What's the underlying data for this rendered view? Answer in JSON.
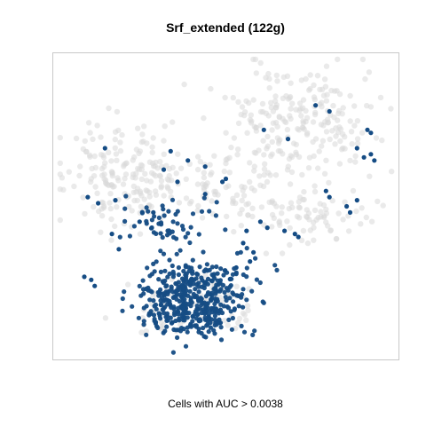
{
  "chart_data": {
    "type": "scatter",
    "title": "Srf_extended (122g)",
    "xlabel": "Cells with AUC > 0.0038",
    "ylabel": "",
    "grid": false,
    "legend": "none",
    "xlim": [
      0,
      100
    ],
    "ylim": [
      0,
      100
    ],
    "colors": {
      "background_cells": "#d8d8d8",
      "highlighted_cells": "#154c84",
      "frame": "#c8c8c8"
    },
    "background_regions": [
      {
        "name": "upper-left cluster",
        "cx": 22,
        "cy": 60,
        "rx": 18,
        "ry": 16,
        "n": 190
      },
      {
        "name": "upper-right cluster",
        "cx": 70,
        "cy": 77,
        "rx": 24,
        "ry": 19,
        "n": 230
      },
      {
        "name": "middle band",
        "cx": 48,
        "cy": 55,
        "rx": 16,
        "ry": 10,
        "n": 70
      },
      {
        "name": "right arm",
        "cx": 76,
        "cy": 47,
        "rx": 17,
        "ry": 9,
        "n": 80
      },
      {
        "name": "lower cluster",
        "cx": 40,
        "cy": 18,
        "rx": 18,
        "ry": 10,
        "n": 90
      }
    ],
    "highlighted_regions": [
      {
        "name": "dense lower cluster",
        "cx": 40,
        "cy": 17,
        "rx": 15,
        "ry": 10,
        "n": 340
      },
      {
        "name": "lower cluster halo",
        "cx": 43,
        "cy": 27,
        "rx": 17,
        "ry": 9,
        "n": 110
      },
      {
        "name": "connecting band",
        "cx": 34,
        "cy": 45,
        "rx": 15,
        "ry": 9,
        "n": 55
      }
    ],
    "highlighted_points": [
      [
        76,
        83
      ],
      [
        80,
        81
      ],
      [
        61,
        75
      ],
      [
        68,
        72
      ],
      [
        91,
        75
      ],
      [
        92,
        74
      ],
      [
        88,
        69
      ],
      [
        90,
        66
      ],
      [
        93,
        65
      ],
      [
        92,
        67
      ],
      [
        15,
        69
      ],
      [
        34,
        68
      ],
      [
        39,
        65
      ],
      [
        44,
        63
      ],
      [
        49,
        58
      ],
      [
        50,
        59
      ],
      [
        44,
        54
      ],
      [
        32,
        62
      ],
      [
        36,
        58
      ],
      [
        18,
        52
      ],
      [
        10,
        53
      ],
      [
        13,
        51
      ],
      [
        17,
        41
      ],
      [
        19,
        36
      ],
      [
        25,
        45
      ],
      [
        29,
        48
      ],
      [
        57,
        32
      ],
      [
        55,
        38
      ],
      [
        67,
        42
      ],
      [
        70,
        41
      ],
      [
        71,
        40
      ],
      [
        85,
        50
      ],
      [
        86,
        48
      ],
      [
        88,
        52
      ],
      [
        79,
        55
      ],
      [
        80,
        53
      ],
      [
        60,
        45
      ],
      [
        62,
        43
      ],
      [
        56,
        42
      ],
      [
        58,
        35
      ],
      [
        53,
        30
      ],
      [
        11,
        26
      ],
      [
        12,
        24
      ],
      [
        9,
        27
      ]
    ]
  }
}
